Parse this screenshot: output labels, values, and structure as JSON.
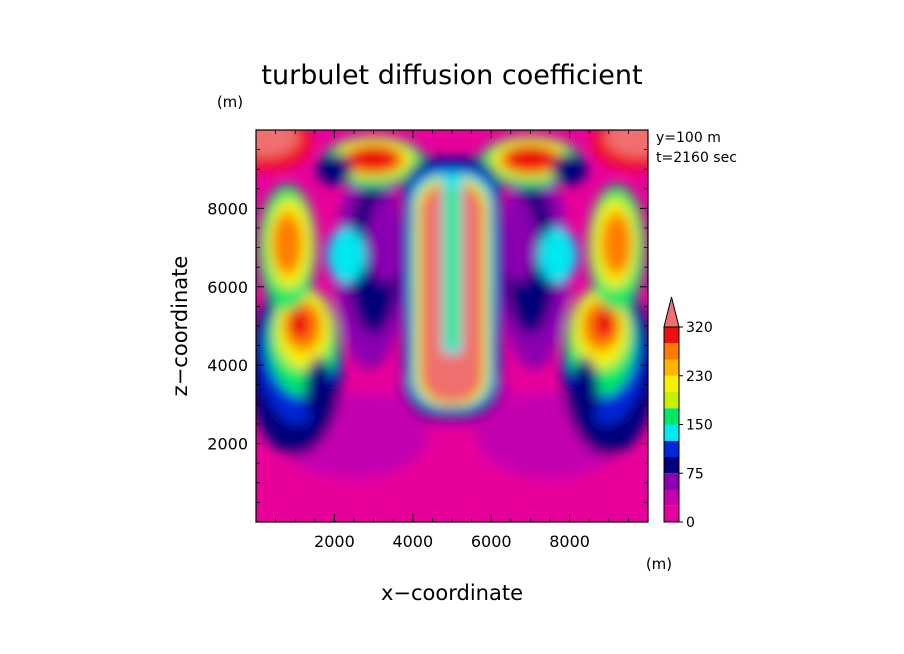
{
  "chart_data": {
    "type": "heatmap",
    "title": "turbulet diffusion coefficient",
    "xlabel": "x−coordinate",
    "ylabel": "z−coordinate",
    "x_unit": "(m)",
    "y_unit": "(m)",
    "annotations": [
      "y=100 m",
      "t=2160 sec"
    ],
    "xlim": [
      0,
      10000
    ],
    "ylim": [
      0,
      10000
    ],
    "x_ticks": [
      2000,
      4000,
      6000,
      8000
    ],
    "y_ticks": [
      2000,
      4000,
      6000,
      8000
    ],
    "x_tick_labels": [
      "2000",
      "4000",
      "6000",
      "8000"
    ],
    "y_tick_labels": [
      "2000",
      "4000",
      "6000",
      "8000"
    ],
    "colorbar": {
      "levels": [
        0,
        25,
        50,
        75,
        100,
        125,
        150,
        175,
        200,
        230,
        260,
        290,
        320
      ],
      "tick_values": [
        0,
        75,
        150,
        230,
        320
      ],
      "tick_labels": [
        "0",
        "75",
        "150",
        "230",
        "320"
      ],
      "colors": [
        "#e8009a",
        "#c200b0",
        "#8a00b0",
        "#00007a",
        "#0026d8",
        "#00e8f0",
        "#00e868",
        "#c8ee00",
        "#f4f200",
        "#ffb400",
        "#ff7a00",
        "#ee1010",
        "#f07070"
      ],
      "extend": "max"
    },
    "approximate_field_features": [
      {
        "feature": "central plume",
        "x": [
          4200,
          5800
        ],
        "z": [
          3000,
          8800
        ],
        "value": 320
      },
      {
        "feature": "top-left cap",
        "x": [
          0,
          1200
        ],
        "z": [
          9000,
          10000
        ],
        "value": 320
      },
      {
        "feature": "top-right cap",
        "x": [
          8800,
          10000
        ],
        "z": [
          9000,
          10000
        ],
        "value": 320
      },
      {
        "feature": "upper-left core",
        "x": [
          2200,
          3600
        ],
        "z": [
          8900,
          9700
        ],
        "value": 290
      },
      {
        "feature": "upper-right core",
        "x": [
          6400,
          7800
        ],
        "z": [
          8900,
          9700
        ],
        "value": 290
      },
      {
        "feature": "left core upper",
        "x": [
          300,
          1300
        ],
        "z": [
          6500,
          7500
        ],
        "value": 260
      },
      {
        "feature": "right core upper",
        "x": [
          8700,
          9700
        ],
        "z": [
          6500,
          7500
        ],
        "value": 260
      },
      {
        "feature": "left core lower",
        "x": [
          700,
          1600
        ],
        "z": [
          4600,
          5400
        ],
        "value": 290
      },
      {
        "feature": "right core lower",
        "x": [
          8400,
          9300
        ],
        "z": [
          4600,
          5400
        ],
        "value": 290
      },
      {
        "feature": "lower region",
        "x": [
          0,
          10000
        ],
        "z": [
          0,
          2500
        ],
        "value": 25
      }
    ]
  }
}
